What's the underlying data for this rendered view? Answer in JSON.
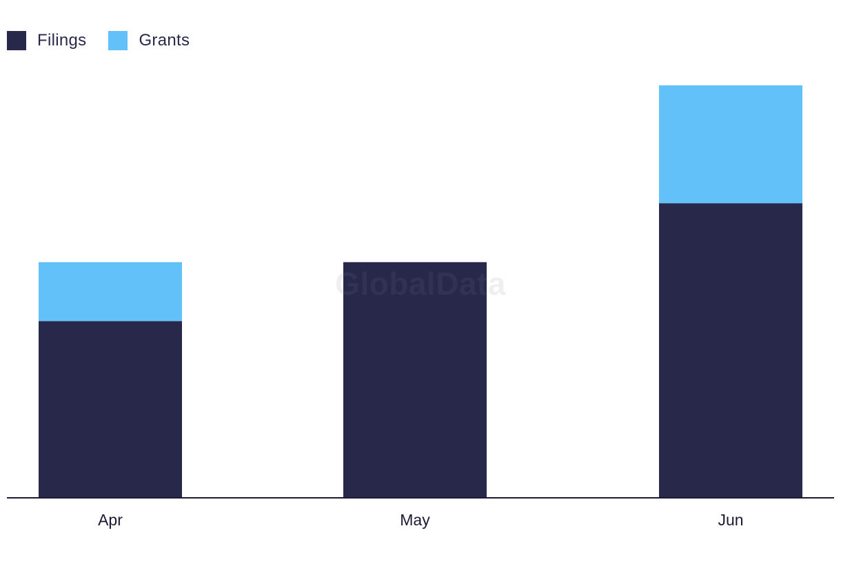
{
  "legend": {
    "items": [
      {
        "label": "Filings",
        "color": "#28284a"
      },
      {
        "label": "Grants",
        "color": "#62c1f9"
      }
    ]
  },
  "watermark": "GlobalData",
  "chart_data": {
    "type": "bar",
    "stacked": true,
    "categories": [
      "Apr",
      "May",
      "Jun"
    ],
    "series": [
      {
        "name": "Filings",
        "color": "#28284a",
        "values": [
          3,
          4,
          5
        ]
      },
      {
        "name": "Grants",
        "color": "#62c1f9",
        "values": [
          1,
          0,
          2
        ]
      }
    ],
    "ylim": [
      0,
      7
    ],
    "grid": false,
    "legend_position": "top-left",
    "title": "",
    "xlabel": "",
    "ylabel": ""
  }
}
